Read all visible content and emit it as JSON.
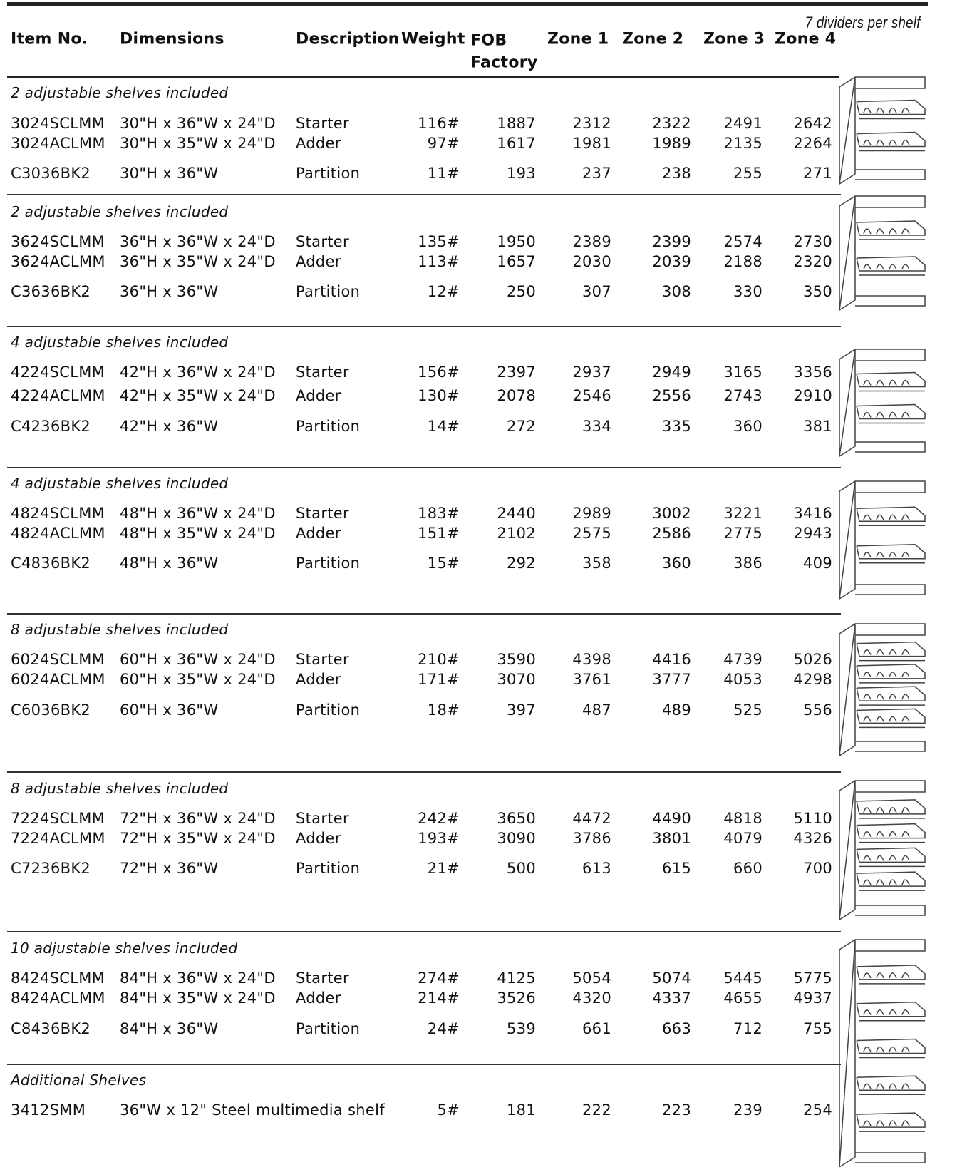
{
  "note": "7 dividers per shelf",
  "header": [
    "Item No.",
    "Dimensions",
    "Description",
    "Weight",
    "FOB Factory",
    "Zone 1",
    "Zone 2",
    "Zone 3",
    "Zone 4"
  ],
  "sections": [
    {
      "title": "2 adjustable shelves included",
      "rows": [
        [
          "3024SCLMM",
          "30\"H x 36\"W x 24\"D",
          "Starter",
          "116#",
          "1887",
          "2312",
          "2322",
          "2491",
          "2642"
        ],
        [
          "3024ACLMM",
          "30\"H x 35\"W x 24\"D",
          "Adder",
          "97#",
          "1617",
          "1981",
          "1989",
          "2135",
          "2264"
        ],
        [
          "C3036BK2",
          "30\"H x 36\"W",
          "Partition",
          "11#",
          "193",
          "237",
          "238",
          "255",
          "271"
        ]
      ]
    },
    {
      "title": "2 adjustable shelves included",
      "rows": [
        [
          "3624SCLMM",
          "36\"H x 36\"W x 24\"D",
          "Starter",
          "135#",
          "1950",
          "2389",
          "2399",
          "2574",
          "2730"
        ],
        [
          "3624ACLMM",
          "36\"H x 35\"W x 24\"D",
          "Adder",
          "113#",
          "1657",
          "2030",
          "2039",
          "2188",
          "2320"
        ],
        [
          "C3636BK2",
          "36\"H x 36\"W",
          "Partition",
          "12#",
          "250",
          "307",
          "308",
          "330",
          "350"
        ]
      ]
    },
    {
      "title": "4 adjustable shelves included",
      "rows": [
        [
          "4224SCLMM",
          "42\"H x 36\"W x 24\"D",
          "Starter",
          "156#",
          "2397",
          "2937",
          "2949",
          "3165",
          "3356"
        ],
        [
          "4224ACLMM",
          "42\"H x 35\"W x 24\"D",
          "Adder",
          "130#",
          "2078",
          "2546",
          "2556",
          "2743",
          "2910"
        ],
        [
          "C4236BK2",
          "42\"H x 36\"W",
          "Partition",
          "14#",
          "272",
          "334",
          "335",
          "360",
          "381"
        ]
      ]
    },
    {
      "title": "4 adjustable shelves included",
      "rows": [
        [
          "4824SCLMM",
          "48\"H x 36\"W x 24\"D",
          "Starter",
          "183#",
          "2440",
          "2989",
          "3002",
          "3221",
          "3416"
        ],
        [
          "4824ACLMM",
          "48\"H x 35\"W x 24\"D",
          "Adder",
          "151#",
          "2102",
          "2575",
          "2586",
          "2775",
          "2943"
        ],
        [
          "C4836BK2",
          "48\"H x 36\"W",
          "Partition",
          "15#",
          "292",
          "358",
          "360",
          "386",
          "409"
        ]
      ]
    },
    {
      "title": "8 adjustable shelves included",
      "rows": [
        [
          "6024SCLMM",
          "60\"H x 36\"W x 24\"D",
          "Starter",
          "210#",
          "3590",
          "4398",
          "4416",
          "4739",
          "5026"
        ],
        [
          "6024ACLMM",
          "60\"H x 35\"W x 24\"D",
          "Adder",
          "171#",
          "3070",
          "3761",
          "3777",
          "4053",
          "4298"
        ],
        [
          "C6036BK2",
          "60\"H x 36\"W",
          "Partition",
          "18#",
          "397",
          "487",
          "489",
          "525",
          "556"
        ]
      ]
    },
    {
      "title": "8 adjustable shelves included",
      "rows": [
        [
          "7224SCLMM",
          "72\"H x 36\"W x 24\"D",
          "Starter",
          "242#",
          "3650",
          "4472",
          "4490",
          "4818",
          "5110"
        ],
        [
          "7224ACLMM",
          "72\"H x 35\"W x 24\"D",
          "Adder",
          "193#",
          "3090",
          "3786",
          "3801",
          "4079",
          "4326"
        ],
        [
          "C7236BK2",
          "72\"H x 36\"W",
          "Partition",
          "21#",
          "500",
          "613",
          "615",
          "660",
          "700"
        ]
      ]
    },
    {
      "title": "10 adjustable shelves included",
      "rows": [
        [
          "8424SCLMM",
          "84\"H x 36\"W x 24\"D",
          "Starter",
          "274#",
          "4125",
          "5054",
          "5074",
          "5445",
          "5775"
        ],
        [
          "8424ACLMM",
          "84\"H x 35\"W x 24\"D",
          "Adder",
          "214#",
          "3526",
          "4320",
          "4337",
          "4655",
          "4937"
        ],
        [
          "C8436BK2",
          "84\"H x 36\"W",
          "Partition",
          "24#",
          "539",
          "661",
          "663",
          "712",
          "755"
        ]
      ]
    },
    {
      "title": "Additional Shelves",
      "rows": [
        [
          "3412SMM",
          "36\"W x 12\" Steel multimedia shelf",
          "5#",
          "181",
          "222",
          "223",
          "239",
          "254"
        ]
      ]
    }
  ]
}
